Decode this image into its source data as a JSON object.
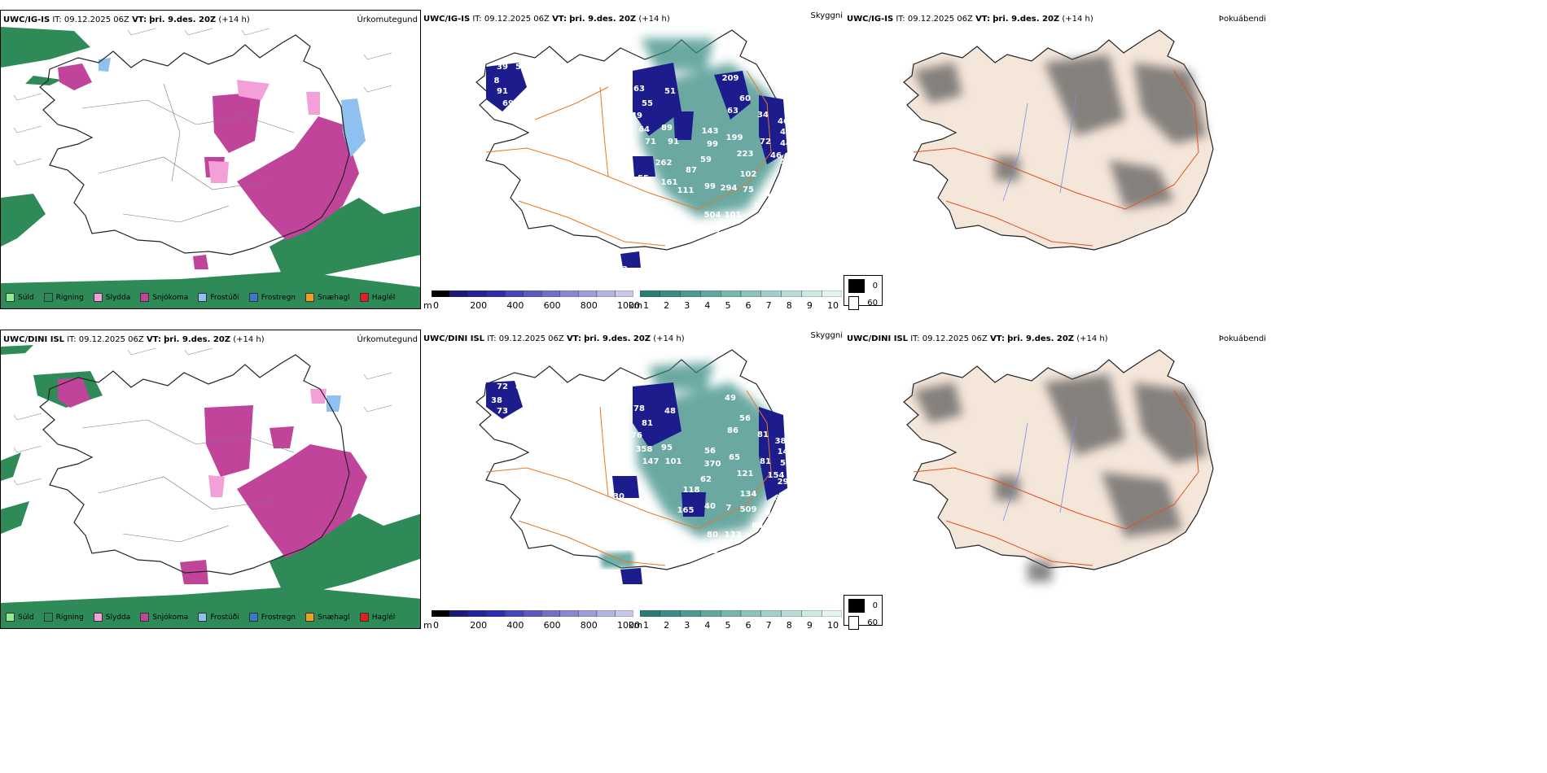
{
  "rows": [
    {
      "model": "UWC/IG-IS",
      "it_label": "IT:",
      "it_value": "09.12.2025 06Z",
      "vt_label": "VT:",
      "vt_value": "þri. 9.des. 20Z",
      "lead": "(+14 h)",
      "cloud_labels": [
        {
          "value": "39"
        },
        {
          "value": "59"
        },
        {
          "value": "8"
        },
        {
          "value": "91"
        },
        {
          "value": "69"
        },
        {
          "value": "19"
        },
        {
          "value": "0"
        },
        {
          "value": "63"
        },
        {
          "value": "55"
        },
        {
          "value": "49"
        },
        {
          "value": "64"
        },
        {
          "value": "71"
        },
        {
          "value": "89"
        },
        {
          "value": "91"
        },
        {
          "value": "51"
        },
        {
          "value": "209"
        },
        {
          "value": "60"
        },
        {
          "value": "63"
        },
        {
          "value": "34"
        },
        {
          "value": "46"
        },
        {
          "value": "43"
        },
        {
          "value": "44"
        },
        {
          "value": "45"
        },
        {
          "value": "143"
        },
        {
          "value": "99"
        },
        {
          "value": "199"
        },
        {
          "value": "72"
        },
        {
          "value": "223"
        },
        {
          "value": "59"
        },
        {
          "value": "46"
        },
        {
          "value": "87"
        },
        {
          "value": "102"
        },
        {
          "value": "40"
        },
        {
          "value": "111"
        },
        {
          "value": "99"
        },
        {
          "value": "294"
        },
        {
          "value": "75"
        },
        {
          "value": "42"
        },
        {
          "value": "8"
        },
        {
          "value": "504"
        },
        {
          "value": "101"
        },
        {
          "value": "161"
        },
        {
          "value": "88"
        },
        {
          "value": "55"
        },
        {
          "value": "161"
        },
        {
          "value": "262"
        },
        {
          "value": "41"
        },
        {
          "value": "53"
        }
      ]
    },
    {
      "model": "UWC/DINI ISL",
      "it_label": "IT:",
      "it_value": "09.12.2025 06Z",
      "vt_label": "VT:",
      "vt_value": "þri. 9.des. 20Z",
      "lead": "(+14 h)",
      "cloud_labels": [
        {
          "value": "72"
        },
        {
          "value": "88"
        },
        {
          "value": "38"
        },
        {
          "value": "73"
        },
        {
          "value": "61"
        },
        {
          "value": "72"
        },
        {
          "value": "79"
        },
        {
          "value": "78"
        },
        {
          "value": "81"
        },
        {
          "value": "76"
        },
        {
          "value": "358"
        },
        {
          "value": "147"
        },
        {
          "value": "95"
        },
        {
          "value": "101"
        },
        {
          "value": "48"
        },
        {
          "value": "49"
        },
        {
          "value": "56"
        },
        {
          "value": "86"
        },
        {
          "value": "81"
        },
        {
          "value": "385"
        },
        {
          "value": "143"
        },
        {
          "value": "58"
        },
        {
          "value": "299"
        },
        {
          "value": "56"
        },
        {
          "value": "370"
        },
        {
          "value": "65"
        },
        {
          "value": "81"
        },
        {
          "value": "121"
        },
        {
          "value": "62"
        },
        {
          "value": "154"
        },
        {
          "value": "118"
        },
        {
          "value": "134"
        },
        {
          "value": "368"
        },
        {
          "value": "165"
        },
        {
          "value": "40"
        },
        {
          "value": "7"
        },
        {
          "value": "509"
        },
        {
          "value": "88"
        },
        {
          "value": "80"
        },
        {
          "value": "80"
        },
        {
          "value": "133"
        },
        {
          "value": "19"
        },
        {
          "value": "30"
        }
      ]
    }
  ],
  "titles": {
    "precip": "Úrkomutegund",
    "cloud": "Skyggni",
    "fog": "Þokuábendi"
  },
  "precip_legend": [
    {
      "label": "Súld",
      "color": "#90ee90"
    },
    {
      "label": "Rigning",
      "color": "#2e8b57"
    },
    {
      "label": "Slydda",
      "color": "#f4a0d8"
    },
    {
      "label": "Snjókoma",
      "color": "#c0449a"
    },
    {
      "label": "Frostúði",
      "color": "#8ec0f0"
    },
    {
      "label": "Frostregn",
      "color": "#3a78c8"
    },
    {
      "label": "Snæhagl",
      "color": "#f0a020"
    },
    {
      "label": "Haglél",
      "color": "#e02020"
    }
  ],
  "elev_bar": {
    "unit": "m",
    "ticks": [
      "0",
      "200",
      "400",
      "600",
      "800",
      "1000"
    ],
    "colors": [
      "#000000",
      "#1a1a7a",
      "#232397",
      "#2d2dad",
      "#4646b8",
      "#5a5ac0",
      "#7070c8",
      "#8888d0",
      "#9e9ed8",
      "#b4b4e0",
      "#c8c8e8"
    ]
  },
  "vis_bar": {
    "unit": "km",
    "ticks": [
      "1",
      "2",
      "3",
      "4",
      "5",
      "6",
      "7",
      "8",
      "9",
      "10"
    ],
    "colors": [
      "#2a7c74",
      "#3b8c84",
      "#4d9a92",
      "#62a89f",
      "#77b6ad",
      "#8cc3ba",
      "#a2d0c8",
      "#b8ddd6",
      "#cee9e4",
      "#e4f4f1"
    ]
  },
  "fog_legend": {
    "items": [
      {
        "label": "0",
        "color": "#000000"
      },
      {
        "label": "60",
        "color": "#ffffff"
      }
    ]
  },
  "colors": {
    "rain": "#2e8b57",
    "snow": "#c0449a",
    "sleet": "#f4a0d8",
    "frz_drizzle": "#8ec0f0",
    "frz_rain": "#3a78c8",
    "land_fog": "#f5e6da",
    "road": "#e87722",
    "river": "#7a8ee8",
    "cloud_navy": "#1c1c8c",
    "cloud_teal": "#3b8c84"
  }
}
